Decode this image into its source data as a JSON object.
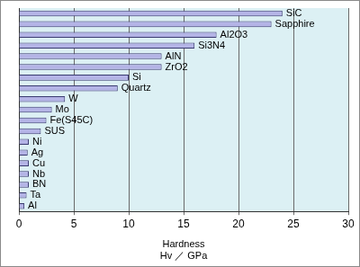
{
  "chart_data": {
    "type": "bar",
    "orientation": "horizontal",
    "categories": [
      "SiC",
      "Sapphire",
      "Al2O3",
      "Si3N4",
      "AlN",
      "ZrO2",
      "Si",
      "Quartz",
      "W",
      "Mo",
      "Fe(S45C)",
      "SUS",
      "Ni",
      "Ag",
      "Cu",
      "Nb",
      "BN",
      "Ta",
      "Al"
    ],
    "values": [
      24,
      23,
      18,
      16,
      13,
      13,
      10,
      9,
      4.2,
      3,
      2.5,
      2,
      0.9,
      0.8,
      0.9,
      0.9,
      0.9,
      0.7,
      0.5
    ],
    "color": "#b4b4e6",
    "x_label": [
      "Hardness",
      "Hv ／ GPa"
    ],
    "xlim": [
      0,
      30
    ],
    "xticks": [
      0,
      5,
      10,
      15,
      20,
      25,
      30
    ],
    "grid": true,
    "tick_labels": "x",
    "data_labels": false
  }
}
